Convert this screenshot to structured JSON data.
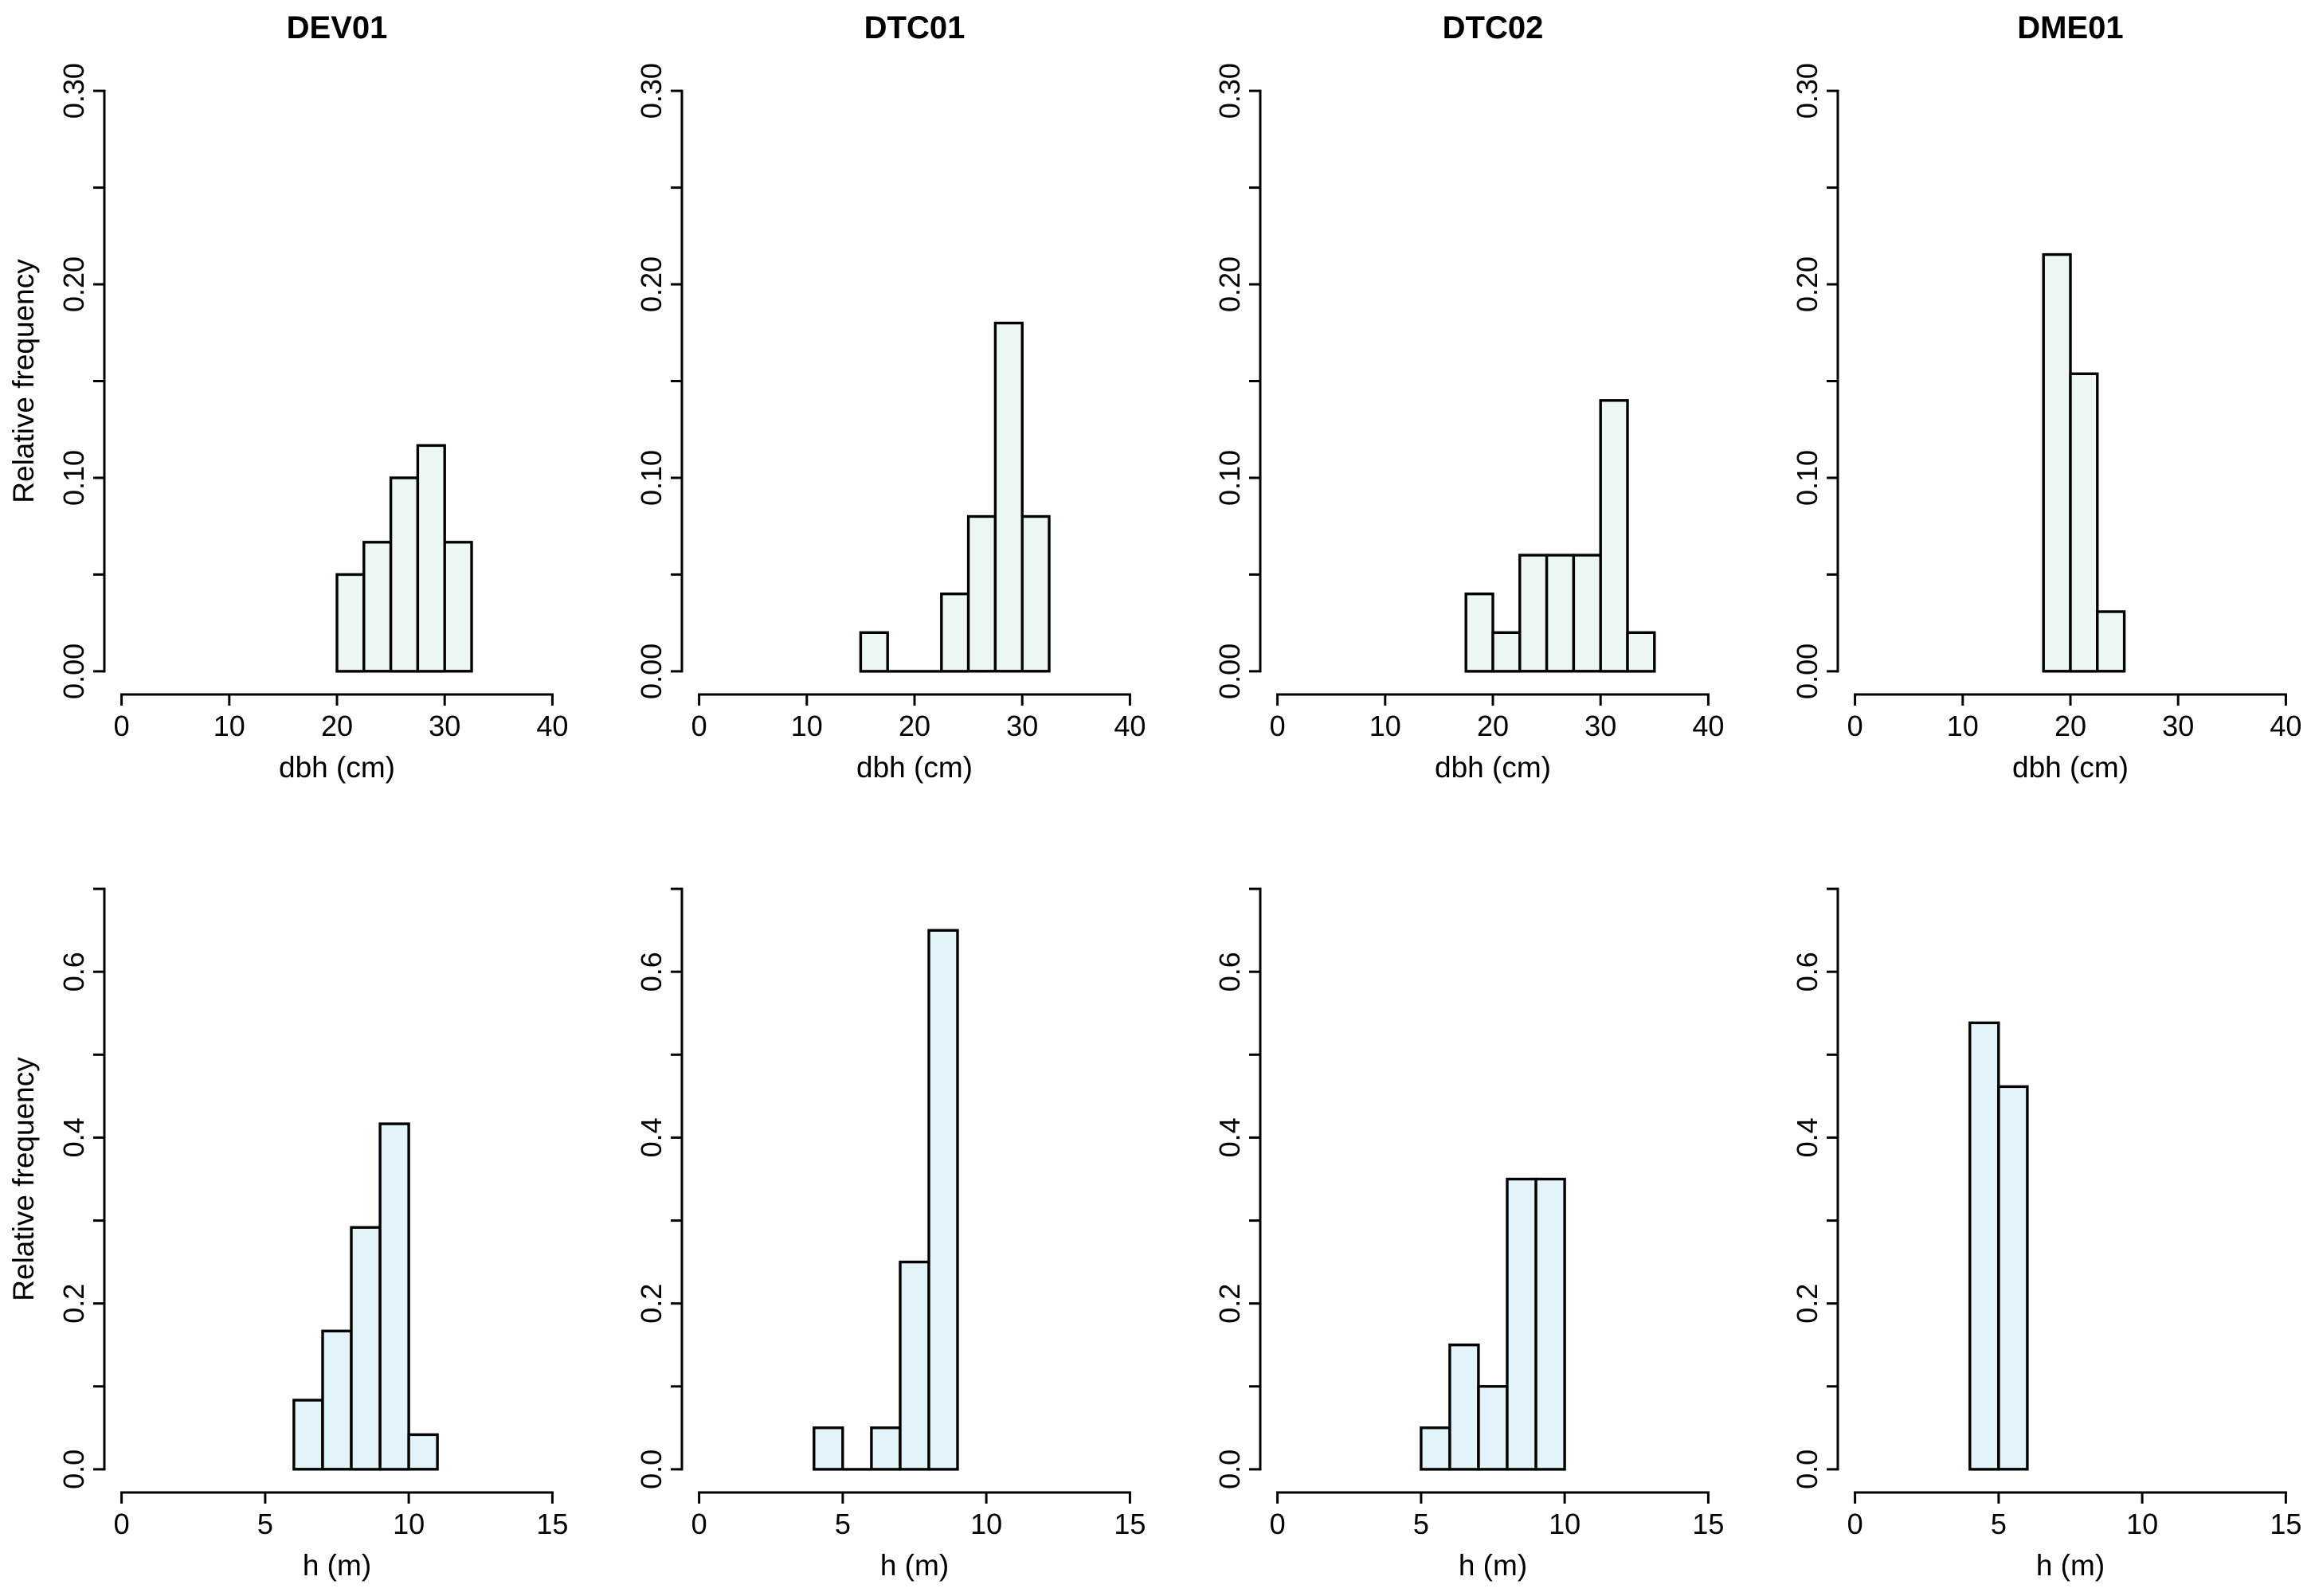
{
  "figure": {
    "background": "#ffffff",
    "axis_color": "#000000",
    "text_color": "#000000",
    "grid": "off",
    "legend": "none",
    "rows": 2,
    "cols": 4,
    "row_fills": [
      "#edf7f1",
      "#e2f3f9"
    ]
  },
  "chart_data": [
    {
      "type": "bar",
      "id": "dev01-dbh",
      "title": "DEV01",
      "xlabel": "dbh (cm)",
      "ylabel": "Relative frequency",
      "row": 0,
      "col": 0,
      "xlim": [
        0,
        40
      ],
      "xticks": [
        0,
        10,
        20,
        30,
        40
      ],
      "ylim": [
        0,
        0.3
      ],
      "yticks": [
        {
          "v": 0.0,
          "label": "0.00"
        },
        {
          "v": 0.05,
          "label": ""
        },
        {
          "v": 0.1,
          "label": "0.10"
        },
        {
          "v": 0.15,
          "label": ""
        },
        {
          "v": 0.2,
          "label": "0.20"
        },
        {
          "v": 0.25,
          "label": ""
        },
        {
          "v": 0.3,
          "label": "0.30"
        }
      ],
      "bar_fill": "#edf7f1",
      "bars": [
        {
          "x0": 20.0,
          "x1": 22.5,
          "h": 0.05
        },
        {
          "x0": 22.5,
          "x1": 25.0,
          "h": 0.0667
        },
        {
          "x0": 25.0,
          "x1": 27.5,
          "h": 0.1
        },
        {
          "x0": 27.5,
          "x1": 30.0,
          "h": 0.1167
        },
        {
          "x0": 30.0,
          "x1": 32.5,
          "h": 0.0667
        }
      ]
    },
    {
      "type": "bar",
      "id": "dtc01-dbh",
      "title": "DTC01",
      "xlabel": "dbh (cm)",
      "ylabel": "",
      "row": 0,
      "col": 1,
      "xlim": [
        0,
        40
      ],
      "xticks": [
        0,
        10,
        20,
        30,
        40
      ],
      "ylim": [
        0,
        0.3
      ],
      "yticks": [
        {
          "v": 0.0,
          "label": "0.00"
        },
        {
          "v": 0.05,
          "label": ""
        },
        {
          "v": 0.1,
          "label": "0.10"
        },
        {
          "v": 0.15,
          "label": ""
        },
        {
          "v": 0.2,
          "label": "0.20"
        },
        {
          "v": 0.25,
          "label": ""
        },
        {
          "v": 0.3,
          "label": "0.30"
        }
      ],
      "bar_fill": "#edf7f1",
      "bars": [
        {
          "x0": 15.0,
          "x1": 17.5,
          "h": 0.02
        },
        {
          "x0": 17.5,
          "x1": 20.0,
          "h": 0
        },
        {
          "x0": 20.0,
          "x1": 22.5,
          "h": 0
        },
        {
          "x0": 22.5,
          "x1": 25.0,
          "h": 0.04
        },
        {
          "x0": 25.0,
          "x1": 27.5,
          "h": 0.08
        },
        {
          "x0": 27.5,
          "x1": 30.0,
          "h": 0.18
        },
        {
          "x0": 30.0,
          "x1": 32.5,
          "h": 0.08
        }
      ]
    },
    {
      "type": "bar",
      "id": "dtc02-dbh",
      "title": "DTC02",
      "xlabel": "dbh (cm)",
      "ylabel": "",
      "row": 0,
      "col": 2,
      "xlim": [
        0,
        40
      ],
      "xticks": [
        0,
        10,
        20,
        30,
        40
      ],
      "ylim": [
        0,
        0.3
      ],
      "yticks": [
        {
          "v": 0.0,
          "label": "0.00"
        },
        {
          "v": 0.05,
          "label": ""
        },
        {
          "v": 0.1,
          "label": "0.10"
        },
        {
          "v": 0.15,
          "label": ""
        },
        {
          "v": 0.2,
          "label": "0.20"
        },
        {
          "v": 0.25,
          "label": ""
        },
        {
          "v": 0.3,
          "label": "0.30"
        }
      ],
      "bar_fill": "#edf7f1",
      "bars": [
        {
          "x0": 17.5,
          "x1": 20.0,
          "h": 0.04
        },
        {
          "x0": 20.0,
          "x1": 22.5,
          "h": 0.02
        },
        {
          "x0": 22.5,
          "x1": 25.0,
          "h": 0.06
        },
        {
          "x0": 25.0,
          "x1": 27.5,
          "h": 0.06
        },
        {
          "x0": 27.5,
          "x1": 30.0,
          "h": 0.06
        },
        {
          "x0": 30.0,
          "x1": 32.5,
          "h": 0.14
        },
        {
          "x0": 32.5,
          "x1": 35.0,
          "h": 0.02
        }
      ]
    },
    {
      "type": "bar",
      "id": "dme01-dbh",
      "title": "DME01",
      "xlabel": "dbh (cm)",
      "ylabel": "",
      "row": 0,
      "col": 3,
      "xlim": [
        0,
        40
      ],
      "xticks": [
        0,
        10,
        20,
        30,
        40
      ],
      "ylim": [
        0,
        0.3
      ],
      "yticks": [
        {
          "v": 0.0,
          "label": "0.00"
        },
        {
          "v": 0.05,
          "label": ""
        },
        {
          "v": 0.1,
          "label": "0.10"
        },
        {
          "v": 0.15,
          "label": ""
        },
        {
          "v": 0.2,
          "label": "0.20"
        },
        {
          "v": 0.25,
          "label": ""
        },
        {
          "v": 0.3,
          "label": "0.30"
        }
      ],
      "bar_fill": "#edf7f1",
      "bars": [
        {
          "x0": 17.5,
          "x1": 20.0,
          "h": 0.2154
        },
        {
          "x0": 20.0,
          "x1": 22.5,
          "h": 0.1538
        },
        {
          "x0": 22.5,
          "x1": 25.0,
          "h": 0.0308
        }
      ]
    },
    {
      "type": "bar",
      "id": "dev01-h",
      "title": "",
      "xlabel": "h (m)",
      "ylabel": "Relative frequency",
      "row": 1,
      "col": 0,
      "xlim": [
        0,
        15
      ],
      "xticks": [
        0,
        5,
        10,
        15
      ],
      "ylim": [
        0,
        0.7
      ],
      "yticks": [
        {
          "v": 0.0,
          "label": "0.0"
        },
        {
          "v": 0.1,
          "label": ""
        },
        {
          "v": 0.2,
          "label": "0.2"
        },
        {
          "v": 0.3,
          "label": ""
        },
        {
          "v": 0.4,
          "label": "0.4"
        },
        {
          "v": 0.5,
          "label": ""
        },
        {
          "v": 0.6,
          "label": "0.6"
        },
        {
          "v": 0.7,
          "label": ""
        }
      ],
      "bar_fill": "#e2f3f9",
      "bars": [
        {
          "x0": 6,
          "x1": 7,
          "h": 0.0833
        },
        {
          "x0": 7,
          "x1": 8,
          "h": 0.1667
        },
        {
          "x0": 8,
          "x1": 9,
          "h": 0.2917
        },
        {
          "x0": 9,
          "x1": 10,
          "h": 0.4167
        },
        {
          "x0": 10,
          "x1": 11,
          "h": 0.0417
        }
      ]
    },
    {
      "type": "bar",
      "id": "dtc01-h",
      "title": "",
      "xlabel": "h (m)",
      "ylabel": "",
      "row": 1,
      "col": 1,
      "xlim": [
        0,
        15
      ],
      "xticks": [
        0,
        5,
        10,
        15
      ],
      "ylim": [
        0,
        0.7
      ],
      "yticks": [
        {
          "v": 0.0,
          "label": "0.0"
        },
        {
          "v": 0.1,
          "label": ""
        },
        {
          "v": 0.2,
          "label": "0.2"
        },
        {
          "v": 0.3,
          "label": ""
        },
        {
          "v": 0.4,
          "label": "0.4"
        },
        {
          "v": 0.5,
          "label": ""
        },
        {
          "v": 0.6,
          "label": "0.6"
        },
        {
          "v": 0.7,
          "label": ""
        }
      ],
      "bar_fill": "#e2f3f9",
      "bars": [
        {
          "x0": 4,
          "x1": 5,
          "h": 0.05
        },
        {
          "x0": 5,
          "x1": 6,
          "h": 0
        },
        {
          "x0": 6,
          "x1": 7,
          "h": 0.05
        },
        {
          "x0": 7,
          "x1": 8,
          "h": 0.25
        },
        {
          "x0": 8,
          "x1": 9,
          "h": 0.65
        }
      ]
    },
    {
      "type": "bar",
      "id": "dtc02-h",
      "title": "",
      "xlabel": "h (m)",
      "ylabel": "",
      "row": 1,
      "col": 2,
      "xlim": [
        0,
        15
      ],
      "xticks": [
        0,
        5,
        10,
        15
      ],
      "ylim": [
        0,
        0.7
      ],
      "yticks": [
        {
          "v": 0.0,
          "label": "0.0"
        },
        {
          "v": 0.1,
          "label": ""
        },
        {
          "v": 0.2,
          "label": "0.2"
        },
        {
          "v": 0.3,
          "label": ""
        },
        {
          "v": 0.4,
          "label": "0.4"
        },
        {
          "v": 0.5,
          "label": ""
        },
        {
          "v": 0.6,
          "label": "0.6"
        },
        {
          "v": 0.7,
          "label": ""
        }
      ],
      "bar_fill": "#e2f3f9",
      "bars": [
        {
          "x0": 5,
          "x1": 6,
          "h": 0.05
        },
        {
          "x0": 6,
          "x1": 7,
          "h": 0.15
        },
        {
          "x0": 7,
          "x1": 8,
          "h": 0.1
        },
        {
          "x0": 8,
          "x1": 9,
          "h": 0.35
        },
        {
          "x0": 9,
          "x1": 10,
          "h": 0.35
        }
      ]
    },
    {
      "type": "bar",
      "id": "dme01-h",
      "title": "",
      "xlabel": "h (m)",
      "ylabel": "",
      "row": 1,
      "col": 3,
      "xlim": [
        0,
        15
      ],
      "xticks": [
        0,
        5,
        10,
        15
      ],
      "ylim": [
        0,
        0.7
      ],
      "yticks": [
        {
          "v": 0.0,
          "label": "0.0"
        },
        {
          "v": 0.1,
          "label": ""
        },
        {
          "v": 0.2,
          "label": "0.2"
        },
        {
          "v": 0.3,
          "label": ""
        },
        {
          "v": 0.4,
          "label": "0.4"
        },
        {
          "v": 0.5,
          "label": ""
        },
        {
          "v": 0.6,
          "label": "0.6"
        },
        {
          "v": 0.7,
          "label": ""
        }
      ],
      "bar_fill": "#e2f3f9",
      "bars": [
        {
          "x0": 4,
          "x1": 5,
          "h": 0.5385
        },
        {
          "x0": 5,
          "x1": 6,
          "h": 0.4615
        }
      ]
    }
  ]
}
